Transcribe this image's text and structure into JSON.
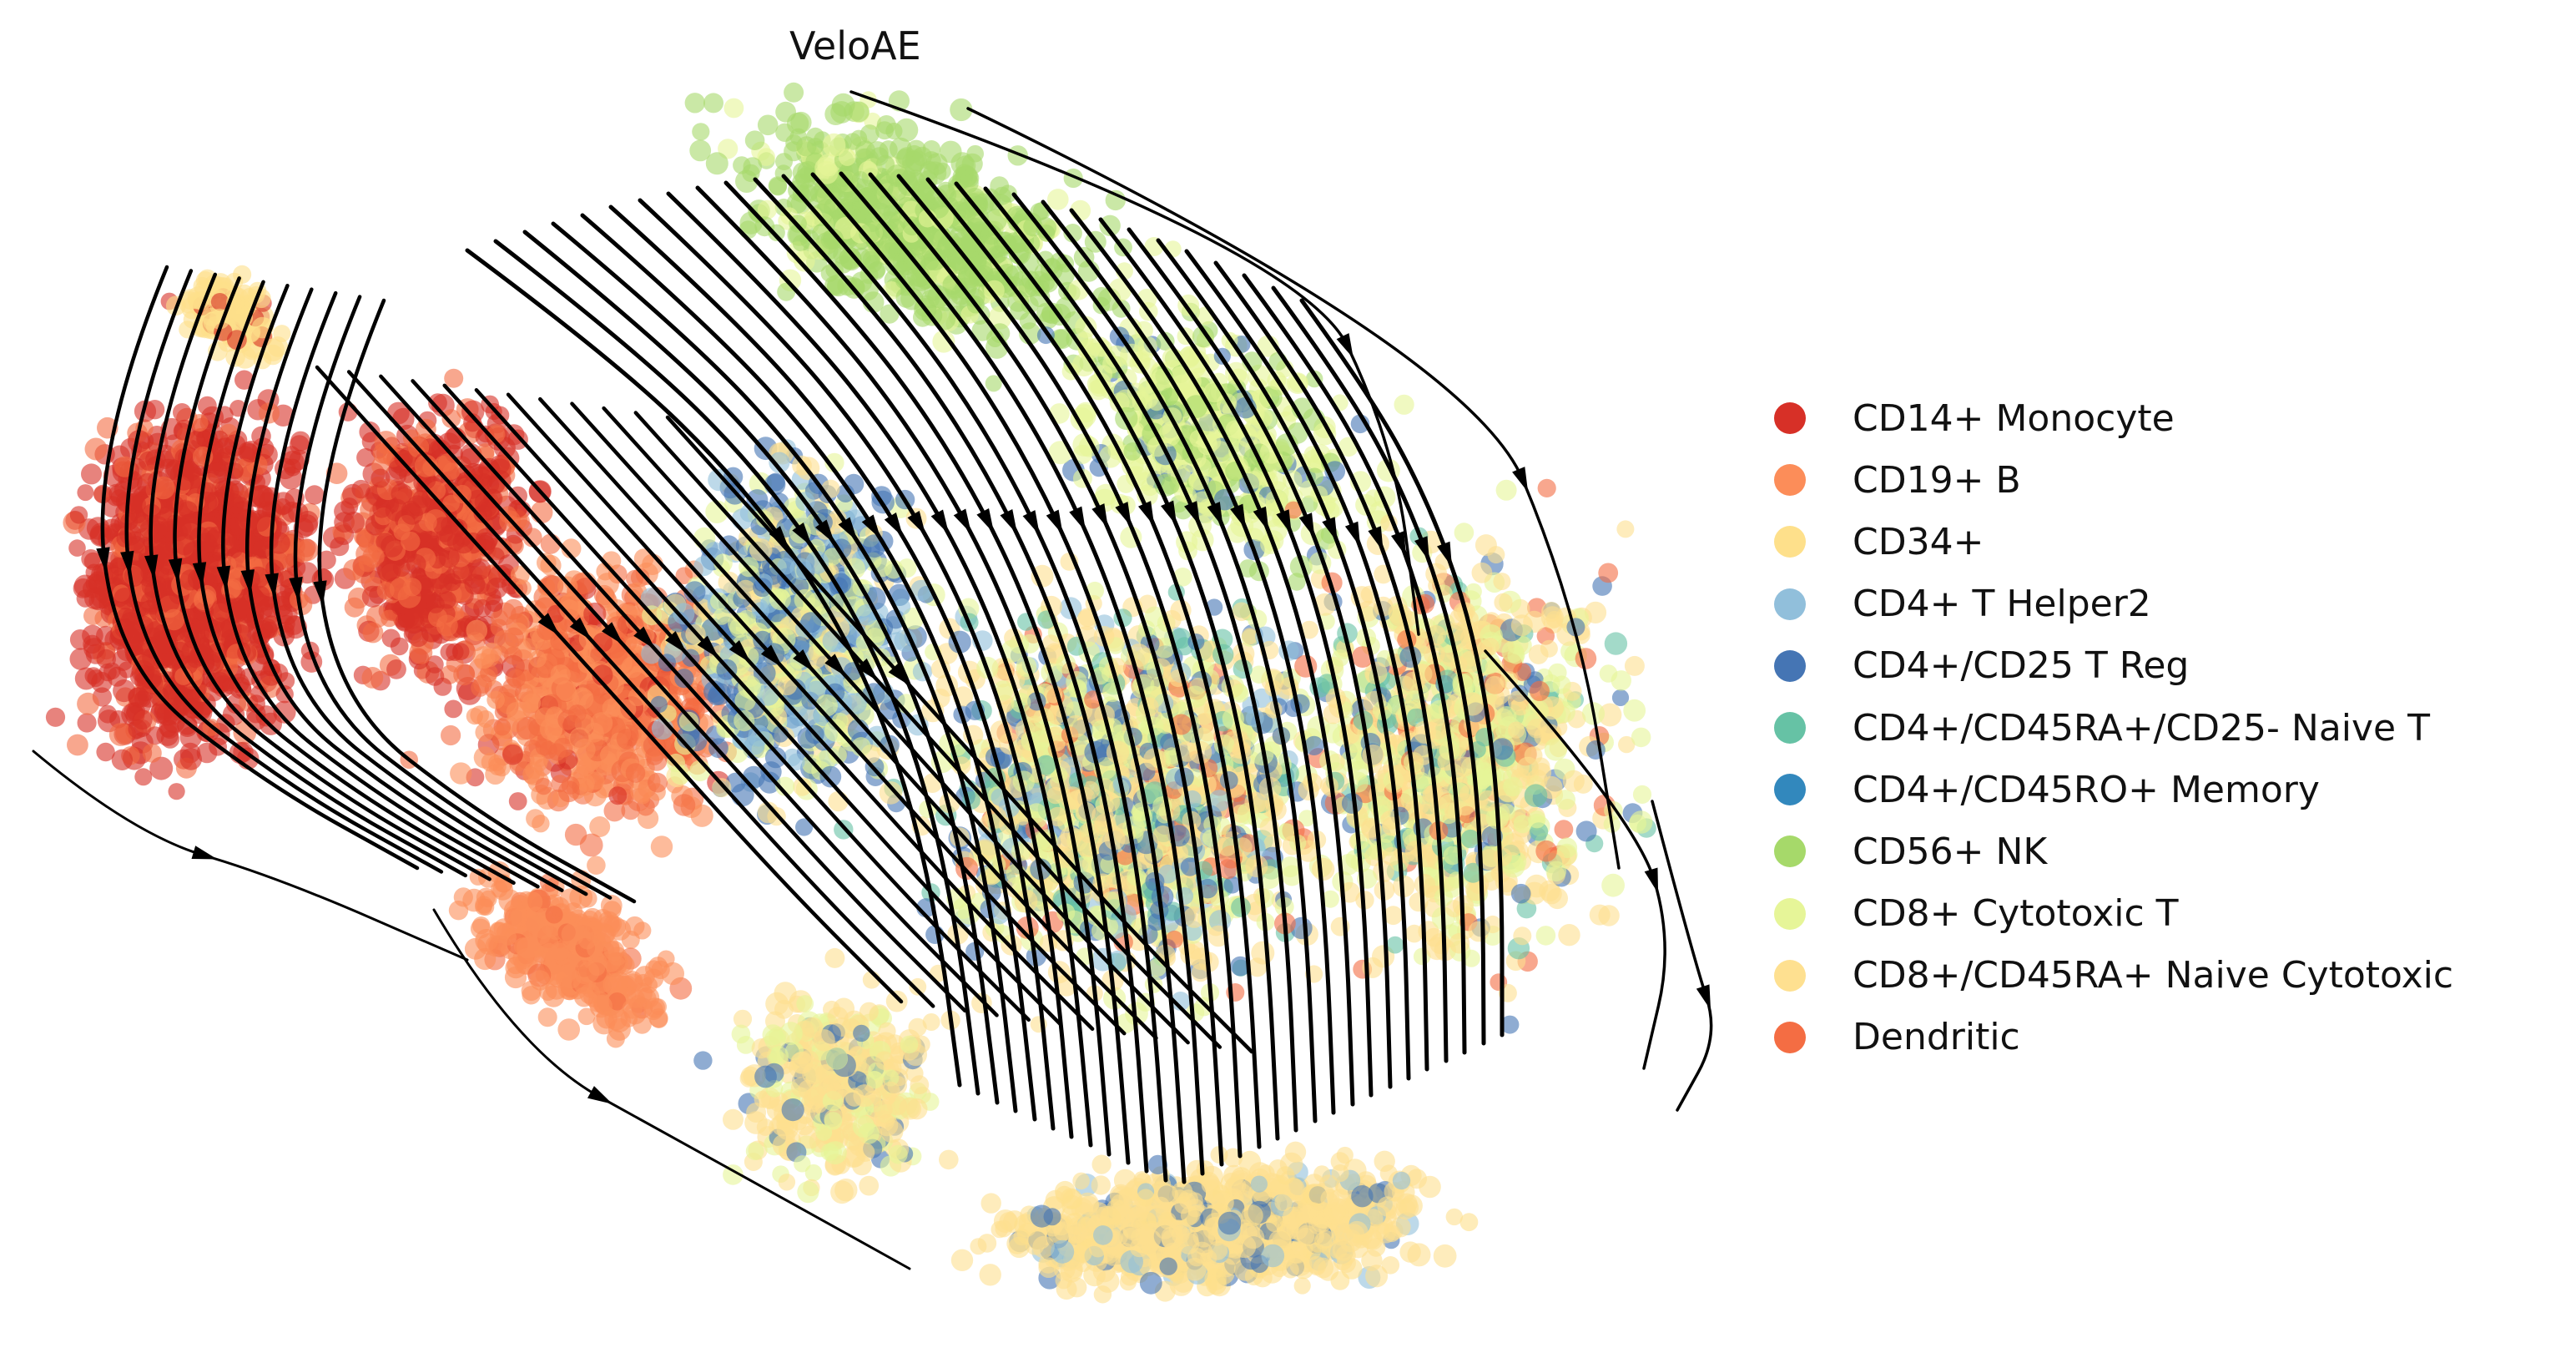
{
  "chart_data": {
    "type": "scatter",
    "title": "VeloAE",
    "xlabel": "",
    "ylabel": "",
    "grid": false,
    "axes_visible": false,
    "legend_placement": "right",
    "overlay": "velocity streamlines with arrowheads",
    "series": [
      {
        "name": "CD14+ Monocyte",
        "color": "#d73027"
      },
      {
        "name": "CD19+ B",
        "color": "#fc8d59"
      },
      {
        "name": "CD34+",
        "color": "#fee08b"
      },
      {
        "name": "CD4+ T Helper2",
        "color": "#91bfdb"
      },
      {
        "name": "CD4+/CD25 T Reg",
        "color": "#4575b4"
      },
      {
        "name": "CD4+/CD45RA+/CD25- Naive T",
        "color": "#66c2a5"
      },
      {
        "name": "CD4+/CD45RO+ Memory",
        "color": "#3288bd"
      },
      {
        "name": "CD56+ NK",
        "color": "#a6d96a"
      },
      {
        "name": "CD8+ Cytotoxic T",
        "color": "#e6f598"
      },
      {
        "name": "CD8+/CD45RA+ Naive Cytotoxic",
        "color": "#fee090"
      },
      {
        "name": "Dendritic",
        "color": "#f46d43"
      }
    ]
  }
}
